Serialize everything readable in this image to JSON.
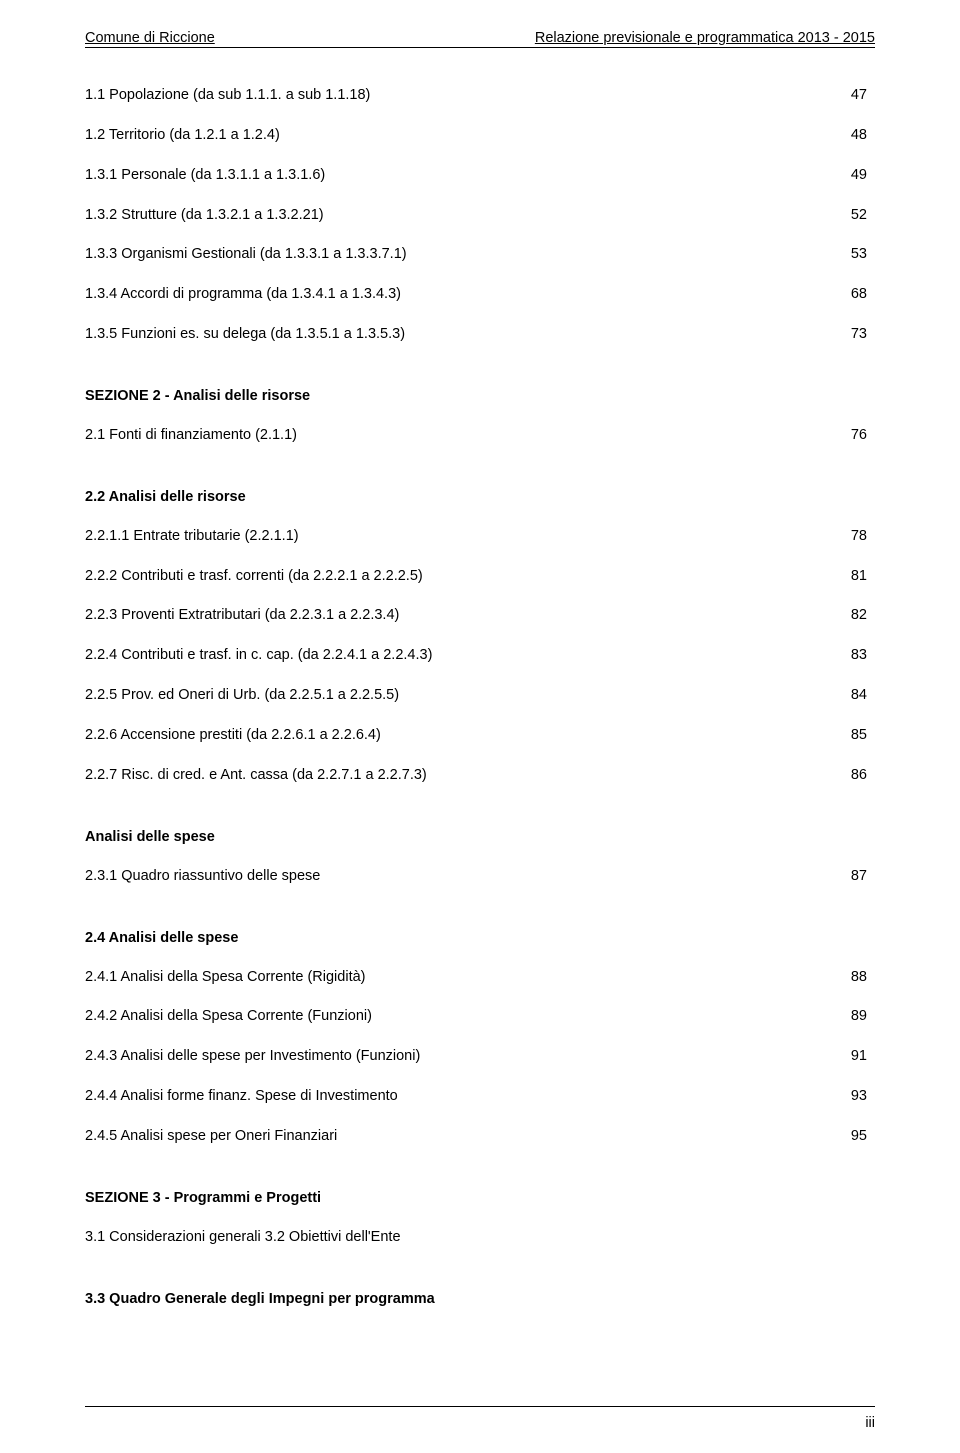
{
  "header": {
    "left": "Comune di Riccione",
    "right": "Relazione previsionale e programmatica 2013 - 2015"
  },
  "rows": [
    {
      "label": "1.1 Popolazione (da sub 1.1.1. a sub 1.1.18)",
      "page": "47",
      "bold": false,
      "gap": "none"
    },
    {
      "label": "1.2 Territorio (da 1.2.1 a 1.2.4)",
      "page": "48",
      "bold": false,
      "gap": "none"
    },
    {
      "label": "1.3.1 Personale (da 1.3.1.1 a 1.3.1.6)",
      "page": "49",
      "bold": false,
      "gap": "none"
    },
    {
      "label": "1.3.2 Strutture (da 1.3.2.1 a 1.3.2.21)",
      "page": "52",
      "bold": false,
      "gap": "none"
    },
    {
      "label": "1.3.3 Organismi Gestionali (da 1.3.3.1 a 1.3.3.7.1)",
      "page": "53",
      "bold": false,
      "gap": "none"
    },
    {
      "label": "1.3.4 Accordi di programma (da 1.3.4.1 a 1.3.4.3)",
      "page": "68",
      "bold": false,
      "gap": "none"
    },
    {
      "label": "1.3.5 Funzioni es. su delega (da 1.3.5.1 a 1.3.5.3)",
      "page": "73",
      "bold": false,
      "gap": "none"
    }
  ],
  "section2_title": "SEZIONE 2 - Analisi delle risorse",
  "rows2": [
    {
      "label": "2.1 Fonti di finanziamento (2.1.1)",
      "page": "76",
      "bold": false,
      "gap": "none"
    }
  ],
  "section22_title": "2.2 Analisi delle risorse",
  "rows22": [
    {
      "label": "2.2.1.1 Entrate tributarie (2.2.1.1)",
      "page": "78",
      "bold": false,
      "gap": "none"
    },
    {
      "label": "2.2.2 Contributi e trasf. correnti (da 2.2.2.1 a 2.2.2.5)",
      "page": "81",
      "bold": false,
      "gap": "none"
    },
    {
      "label": "2.2.3 Proventi Extratributari (da 2.2.3.1 a 2.2.3.4)",
      "page": "82",
      "bold": false,
      "gap": "none"
    },
    {
      "label": "2.2.4 Contributi e trasf. in c. cap. (da 2.2.4.1 a 2.2.4.3)",
      "page": "83",
      "bold": false,
      "gap": "none"
    },
    {
      "label": "2.2.5 Prov. ed Oneri di Urb. (da 2.2.5.1 a 2.2.5.5)",
      "page": "84",
      "bold": false,
      "gap": "none"
    },
    {
      "label": "2.2.6 Accensione prestiti (da 2.2.6.1 a 2.2.6.4)",
      "page": "85",
      "bold": false,
      "gap": "none"
    },
    {
      "label": "2.2.7 Risc. di cred. e Ant. cassa (da 2.2.7.1 a 2.2.7.3)",
      "page": "86",
      "bold": false,
      "gap": "none"
    }
  ],
  "section_spese_title": "Analisi delle spese",
  "rows_spese": [
    {
      "label": "2.3.1 Quadro riassuntivo delle spese",
      "page": "87",
      "bold": false,
      "gap": "none"
    }
  ],
  "section24_title": "2.4 Analisi delle spese",
  "rows24": [
    {
      "label": "2.4.1 Analisi della Spesa Corrente (Rigidità)",
      "page": "88",
      "bold": false,
      "gap": "none"
    },
    {
      "label": "2.4.2 Analisi della Spesa Corrente (Funzioni)",
      "page": "89",
      "bold": false,
      "gap": "none"
    },
    {
      "label": "2.4.3 Analisi delle spese per Investimento (Funzioni)",
      "page": "91",
      "bold": false,
      "gap": "none"
    },
    {
      "label": "2.4.4 Analisi forme finanz. Spese di Investimento",
      "page": "93",
      "bold": false,
      "gap": "none"
    },
    {
      "label": "2.4.5 Analisi spese per Oneri Finanziari",
      "page": "95",
      "bold": false,
      "gap": "none"
    }
  ],
  "section3_title": "SEZIONE 3 - Programmi e Progetti",
  "rows3": [
    {
      "label": "3.1 Considerazioni generali 3.2 Obiettivi dell'Ente",
      "page": "",
      "bold": false,
      "gap": "none"
    }
  ],
  "section33_title": "3.3 Quadro Generale degli Impegni per programma",
  "footer_page": "iii"
}
